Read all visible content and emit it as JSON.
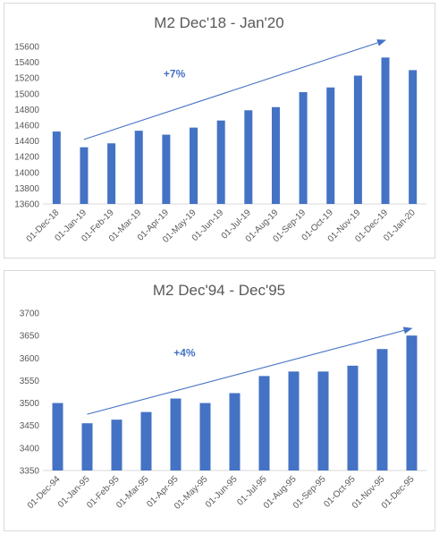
{
  "chart_data": [
    {
      "type": "bar",
      "title": "M2 Dec'18 - Jan'20",
      "xlabel": "",
      "ylabel": "",
      "categories": [
        "01-Dec-18",
        "01-Jan-19",
        "01-Feb-19",
        "01-Mar-19",
        "01-Apr-19",
        "01-May-19",
        "01-Jun-19",
        "01-Jul-19",
        "01-Aug-19",
        "01-Sep-19",
        "01-Oct-19",
        "01-Nov-19",
        "01-Dec-19",
        "01-Jan-20"
      ],
      "values": [
        14520,
        14320,
        14370,
        14530,
        14480,
        14570,
        14660,
        14790,
        14830,
        15020,
        15080,
        15230,
        15460,
        15300
      ],
      "ylim": [
        13600,
        15600
      ],
      "yticks": [
        13600,
        13800,
        14000,
        14200,
        14400,
        14600,
        14800,
        15000,
        15200,
        15400,
        15600
      ],
      "grid": false,
      "legend": "none",
      "bar_color": "#4472c4",
      "annotation": {
        "text": "+7%",
        "color": "#4472c4",
        "arrow": {
          "from_category": "01-Jan-19",
          "from_value": 14420,
          "to_category": "01-Dec-19",
          "to_value": 15680
        }
      }
    },
    {
      "type": "bar",
      "title": "M2 Dec'94 - Dec'95",
      "xlabel": "",
      "ylabel": "",
      "categories": [
        "01-Dec-94",
        "01-Jan-95",
        "01-Feb-95",
        "01-Mar-95",
        "01-Apr-95",
        "01-May-95",
        "01-Jun-95",
        "01-Jul-95",
        "01-Aug-95",
        "01-Sep-95",
        "01-Oct-95",
        "01-Nov-95",
        "01-Dec-95"
      ],
      "values": [
        3500,
        3455,
        3463,
        3480,
        3510,
        3500,
        3522,
        3560,
        3570,
        3570,
        3583,
        3620,
        3650
      ],
      "ylim": [
        3350,
        3700
      ],
      "yticks": [
        3350,
        3400,
        3450,
        3500,
        3550,
        3600,
        3650,
        3700
      ],
      "grid": false,
      "legend": "none",
      "bar_color": "#4472c4",
      "annotation": {
        "text": "+4%",
        "color": "#4472c4",
        "arrow": {
          "from_category": "01-Jan-95",
          "from_value": 3475,
          "to_category": "01-Dec-95",
          "to_value": 3666
        }
      }
    }
  ]
}
